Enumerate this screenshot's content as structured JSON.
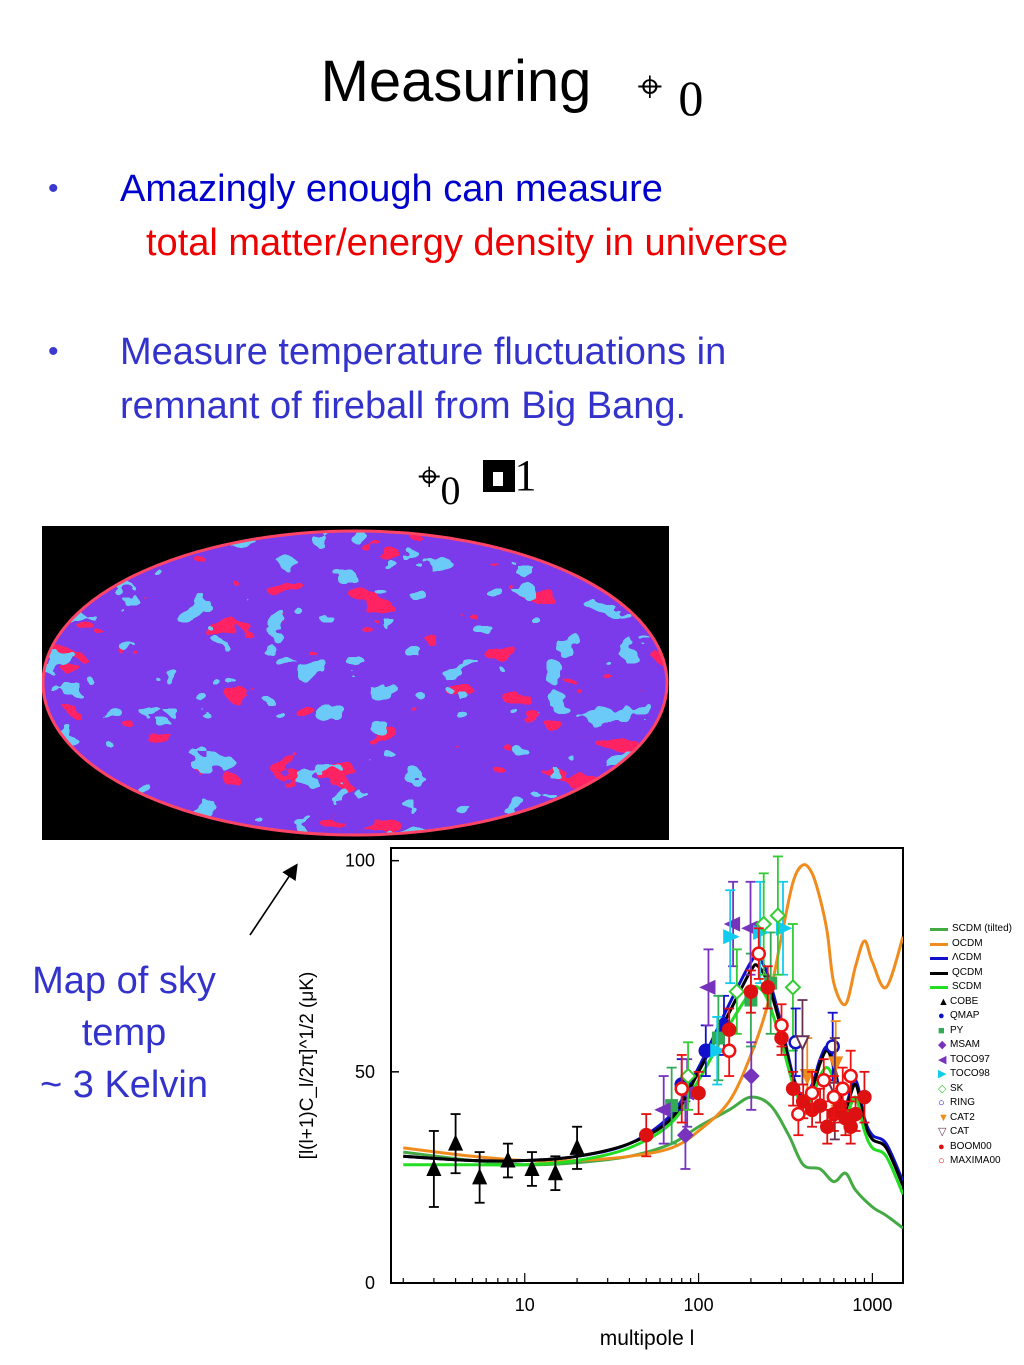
{
  "title": {
    "text": "Measuring",
    "symbol": "⌖",
    "subscript": "0"
  },
  "bullets": [
    {
      "marker": "•",
      "line1": "Amazingly enough can measure",
      "line2": "total matter/energy density in universe"
    },
    {
      "marker": "•",
      "line1": "Measure  temperature fluctuations in",
      "line2": "remnant of fireball from Big Bang."
    }
  ],
  "equation": {
    "symbol": "⌖",
    "subscript": "0",
    "rhs": "1"
  },
  "caption": {
    "line1": "Map of sky",
    "line2": "temp",
    "line3": "~ 3 Kelvin"
  },
  "colors": {
    "blue_text": "#0000cc",
    "red_text": "#ee0000",
    "muted_blue": "#3333cc"
  },
  "chart_data": {
    "type": "scatter",
    "xlabel": "multipole l",
    "ylabel": "[l(l+1)C_l/2π]^1/2 (μK)",
    "x_scale": "log",
    "xlim": [
      1.7,
      1500
    ],
    "ylim": [
      0,
      103
    ],
    "x_ticks": [
      10,
      100,
      1000
    ],
    "x_tick_labels": [
      "10",
      "100",
      "1000"
    ],
    "y_ticks": [
      0,
      50,
      100
    ],
    "y_tick_labels": [
      "0",
      "50",
      "100"
    ],
    "grid": false,
    "legend_position": "right",
    "series": [
      {
        "name": "SCDM (tilted)",
        "kind": "line",
        "color": "#44aa44",
        "x": [
          2,
          5,
          10,
          20,
          40,
          70,
          100,
          150,
          200,
          260,
          330,
          400,
          500,
          600,
          700,
          800,
          1000,
          1200,
          1500
        ],
        "y": [
          31,
          29,
          28,
          28.5,
          30,
          33,
          37,
          41,
          44,
          42,
          35,
          28,
          27,
          24,
          26,
          22,
          18,
          16,
          13
        ]
      },
      {
        "name": "OCDM",
        "kind": "line",
        "color": "#f08c1e",
        "x": [
          2,
          5,
          10,
          20,
          40,
          70,
          100,
          150,
          200,
          250,
          300,
          350,
          400,
          450,
          500,
          550,
          600,
          700,
          800,
          900,
          1000,
          1200,
          1500
        ],
        "y": [
          32,
          30,
          29,
          29,
          30,
          32,
          36,
          43,
          54,
          66,
          82,
          95,
          99,
          97,
          91,
          83,
          71,
          66,
          75,
          81,
          76,
          70,
          82
        ]
      },
      {
        "name": "ΛCDM",
        "kind": "line",
        "color": "#1111cc",
        "x": [
          2,
          5,
          10,
          20,
          40,
          70,
          100,
          150,
          200,
          220,
          250,
          300,
          350,
          400,
          450,
          500,
          550,
          600,
          650,
          700,
          800,
          900,
          1000,
          1200,
          1500
        ],
        "y": [
          30,
          29,
          29,
          30,
          33,
          40,
          51,
          66,
          76,
          77,
          73,
          61,
          49,
          44,
          47,
          53,
          56,
          52,
          45,
          42,
          48,
          39,
          35,
          33,
          24
        ]
      },
      {
        "name": "QCDM",
        "kind": "line",
        "color": "#000000",
        "x": [
          2,
          5,
          10,
          20,
          40,
          70,
          100,
          150,
          200,
          220,
          250,
          300,
          350,
          400,
          450,
          500,
          550,
          600,
          650,
          700,
          800,
          900,
          1000,
          1200,
          1500
        ],
        "y": [
          30,
          29,
          29,
          30,
          33,
          39,
          50,
          64,
          74,
          75,
          71,
          60,
          48,
          43,
          46,
          52,
          55,
          51,
          44,
          41,
          47,
          38,
          34,
          32,
          23
        ]
      },
      {
        "name": "SCDM",
        "kind": "line",
        "color": "#22dd22",
        "x": [
          2,
          5,
          10,
          20,
          40,
          70,
          100,
          150,
          200,
          220,
          250,
          300,
          350,
          400,
          450,
          500,
          550,
          600,
          650,
          700,
          800,
          900,
          1000,
          1200,
          1500
        ],
        "y": [
          28,
          28,
          28,
          29,
          32,
          38,
          48,
          61,
          69,
          70,
          67,
          57,
          47,
          42,
          44,
          49,
          51,
          48,
          42,
          39,
          44,
          36,
          32,
          30,
          21
        ]
      },
      {
        "name": "COBE",
        "kind": "points",
        "color": "#000000",
        "marker": "triangle",
        "x": [
          3,
          4,
          5.5,
          8,
          11,
          15,
          20
        ],
        "y": [
          27,
          33,
          25,
          29,
          27,
          26,
          32
        ],
        "err": [
          9,
          7,
          6,
          4,
          4,
          4,
          5
        ]
      },
      {
        "name": "QMAP",
        "kind": "points",
        "color": "#1111cc",
        "marker": "circle",
        "x": [
          80,
          110,
          140
        ],
        "y": [
          47,
          55,
          61
        ],
        "err": [
          6,
          6,
          7
        ]
      },
      {
        "name": "PY",
        "kind": "points",
        "color": "#33aa55",
        "marker": "square",
        "x": [
          70,
          130,
          200,
          260
        ],
        "y": [
          42,
          58,
          67,
          71
        ],
        "err": [
          9,
          10,
          11,
          12
        ]
      },
      {
        "name": "MSAM",
        "kind": "points",
        "color": "#7733bb",
        "marker": "diamond",
        "x": [
          84,
          201
        ],
        "y": [
          35,
          49
        ],
        "err": [
          8,
          8
        ]
      },
      {
        "name": "TOCO97",
        "kind": "points",
        "color": "#7733bb",
        "marker": "triangle-left",
        "x": [
          63,
          86,
          114,
          158,
          199
        ],
        "y": [
          41,
          45,
          70,
          85,
          84
        ],
        "err": [
          8,
          8,
          9,
          10,
          11
        ]
      },
      {
        "name": "TOCO98",
        "kind": "points",
        "color": "#11ccee",
        "marker": "triangle-right",
        "x": [
          128,
          152,
          226,
          306
        ],
        "y": [
          55,
          82,
          83,
          84
        ],
        "err": [
          8,
          11,
          12,
          11
        ]
      },
      {
        "name": "SK",
        "kind": "points",
        "color": "#33cc33",
        "marker": "diamond-open",
        "x": [
          87,
          166,
          237,
          286,
          349
        ],
        "y": [
          49,
          69,
          85,
          87,
          70
        ],
        "err": [
          8,
          10,
          12,
          14,
          15
        ]
      },
      {
        "name": "RING",
        "kind": "points",
        "color": "#1111cc",
        "marker": "circle-open",
        "x": [
          362,
          591
        ],
        "y": [
          57,
          56
        ],
        "err": [
          8,
          8
        ]
      },
      {
        "name": "CAT2",
        "kind": "points",
        "color": "#f08c1e",
        "marker": "triangle-down",
        "x": [
          422,
          615
        ],
        "y": [
          49,
          52
        ],
        "err": [
          9,
          10
        ]
      },
      {
        "name": "CAT",
        "kind": "points",
        "color": "#663355",
        "marker": "triangle-down-open",
        "x": [
          396,
          608
        ],
        "y": [
          57,
          46
        ],
        "err": [
          10,
          12
        ]
      },
      {
        "name": "BOOM00",
        "kind": "points",
        "color": "#dd1111",
        "marker": "circle",
        "x": [
          50,
          100,
          150,
          200,
          250,
          300,
          350,
          400,
          450,
          500,
          550,
          600,
          650,
          700,
          750,
          800,
          900
        ],
        "y": [
          35,
          45,
          60,
          69,
          70,
          58,
          46,
          43,
          41,
          42,
          37,
          40,
          42,
          39,
          37,
          40,
          44
        ],
        "err": [
          5,
          5,
          5,
          5,
          5,
          4,
          4,
          4,
          4,
          4,
          4,
          4,
          4,
          4,
          4,
          4,
          6
        ]
      },
      {
        "name": "MAXIMA00",
        "kind": "points",
        "color": "#ee1111",
        "marker": "circle-open",
        "x": [
          80,
          150,
          222,
          300,
          375,
          450,
          525,
          600,
          675,
          750
        ],
        "y": [
          46,
          55,
          78,
          61,
          40,
          45,
          48,
          44,
          46,
          49
        ],
        "err": [
          8,
          6,
          6,
          5,
          5,
          5,
          5,
          5,
          5,
          6
        ]
      }
    ]
  }
}
